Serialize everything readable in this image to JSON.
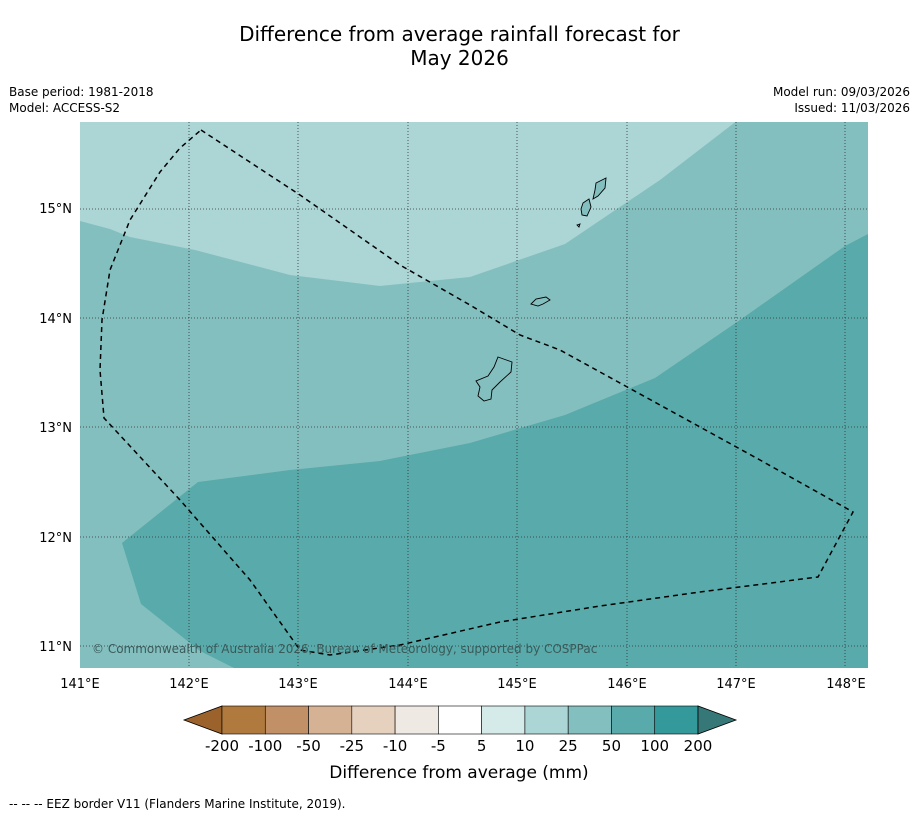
{
  "title": {
    "line1": "Difference from average rainfall forecast for",
    "line2": "May 2026"
  },
  "meta": {
    "base_period": "Base period: 1981-2018",
    "model": "Model: ACCESS-S2",
    "model_run": "Model run: 09/03/2026",
    "issued": "Issued: 11/03/2026"
  },
  "map": {
    "lon_labels": [
      "141°E",
      "142°E",
      "143°E",
      "144°E",
      "145°E",
      "146°E",
      "147°E",
      "148°E"
    ],
    "lat_labels": [
      "15°N",
      "14°N",
      "13°N",
      "12°N",
      "11°N"
    ],
    "copyright": "© Commonwealth of Australia 2026, Bureau of Meteorology, supported by COSPPac",
    "zones": [
      {
        "name": "10 to 25 mm",
        "color": "#acd5d5"
      },
      {
        "name": "25 to 50 mm",
        "color": "#84bfbf"
      },
      {
        "name": "50 to 100 mm",
        "color": "#59aaaa"
      }
    ]
  },
  "colorbar": {
    "colors": [
      "#9b622c",
      "#b07a3e",
      "#c19067",
      "#d5b293",
      "#e6d0be",
      "#efe9e4",
      "#ffffff",
      "#d4ebe9",
      "#acd5d5",
      "#84bfbf",
      "#59aaaa",
      "#34999a",
      "#367877"
    ],
    "tick_labels": [
      "-200",
      "-100",
      "-50",
      "-25",
      "-10",
      "-5",
      "5",
      "10",
      "25",
      "50",
      "100",
      "200"
    ],
    "label": "Difference from average (mm)"
  },
  "footnote": "--  --  -- EEZ border V11 (Flanders Marine Institute, 2019)."
}
